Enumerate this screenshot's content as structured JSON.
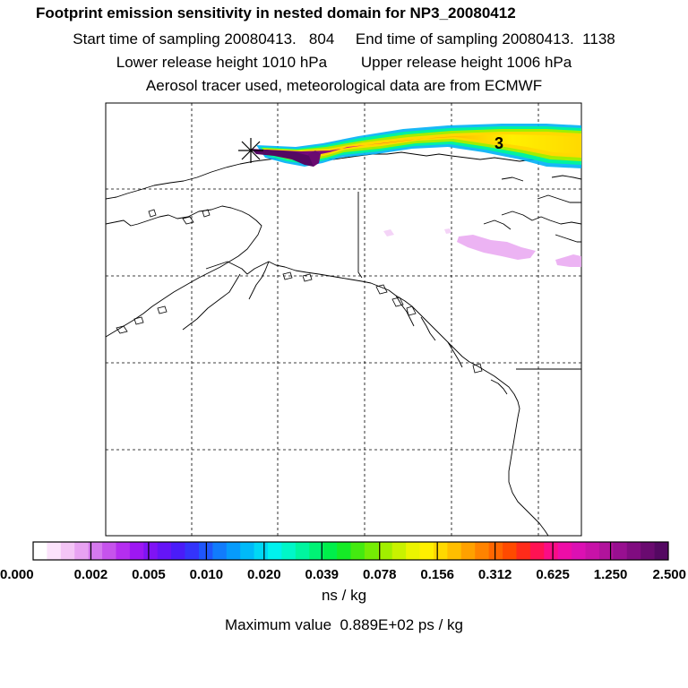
{
  "titles": {
    "main": "Footprint emission sensitivity in nested domain for NP3_20080412",
    "sampling": "Start time of sampling 20080413.   804     End time of sampling 20080413.  1138",
    "release": "Lower release height 1010 hPa        Upper release height 1006 hPa",
    "tracer": "Aerosol tracer used, meteorological data are from ECMWF"
  },
  "map": {
    "release_marker": "star-cross",
    "plume_label": "3"
  },
  "colorbar": {
    "tick_labels": [
      "0.000",
      "0.002",
      "0.005",
      "0.010",
      "0.020",
      "0.039",
      "0.078",
      "0.156",
      "0.312",
      "0.625",
      "1.250",
      "2.500"
    ],
    "colors": [
      "#ffffff",
      "#fbe3fb",
      "#f4c5f6",
      "#e8a2f2",
      "#d579ee",
      "#c653ec",
      "#b52ef0",
      "#9e17f3",
      "#8013f5",
      "#6515f7",
      "#4a1cf9",
      "#3434fb",
      "#1f56fc",
      "#117cfc",
      "#069bfb",
      "#00baf9",
      "#00d8f5",
      "#00f2ee",
      "#00f7c8",
      "#00f59f",
      "#00f275",
      "#00ef4b",
      "#15eb26",
      "#44ea10",
      "#74ec04",
      "#a1ef00",
      "#c9f200",
      "#ebf400",
      "#fff000",
      "#ffd900",
      "#ffbe00",
      "#ffa100",
      "#ff8300",
      "#ff6600",
      "#ff4a00",
      "#ff2b1a",
      "#ff1253",
      "#fa0c86",
      "#ee0da7",
      "#dc10b3",
      "#c812a8",
      "#b1139c",
      "#980f90",
      "#800c80",
      "#6a0a70",
      "#540862"
    ],
    "units": "ns / kg"
  },
  "maximum": "Maximum value  0.889E+02 ps / kg"
}
